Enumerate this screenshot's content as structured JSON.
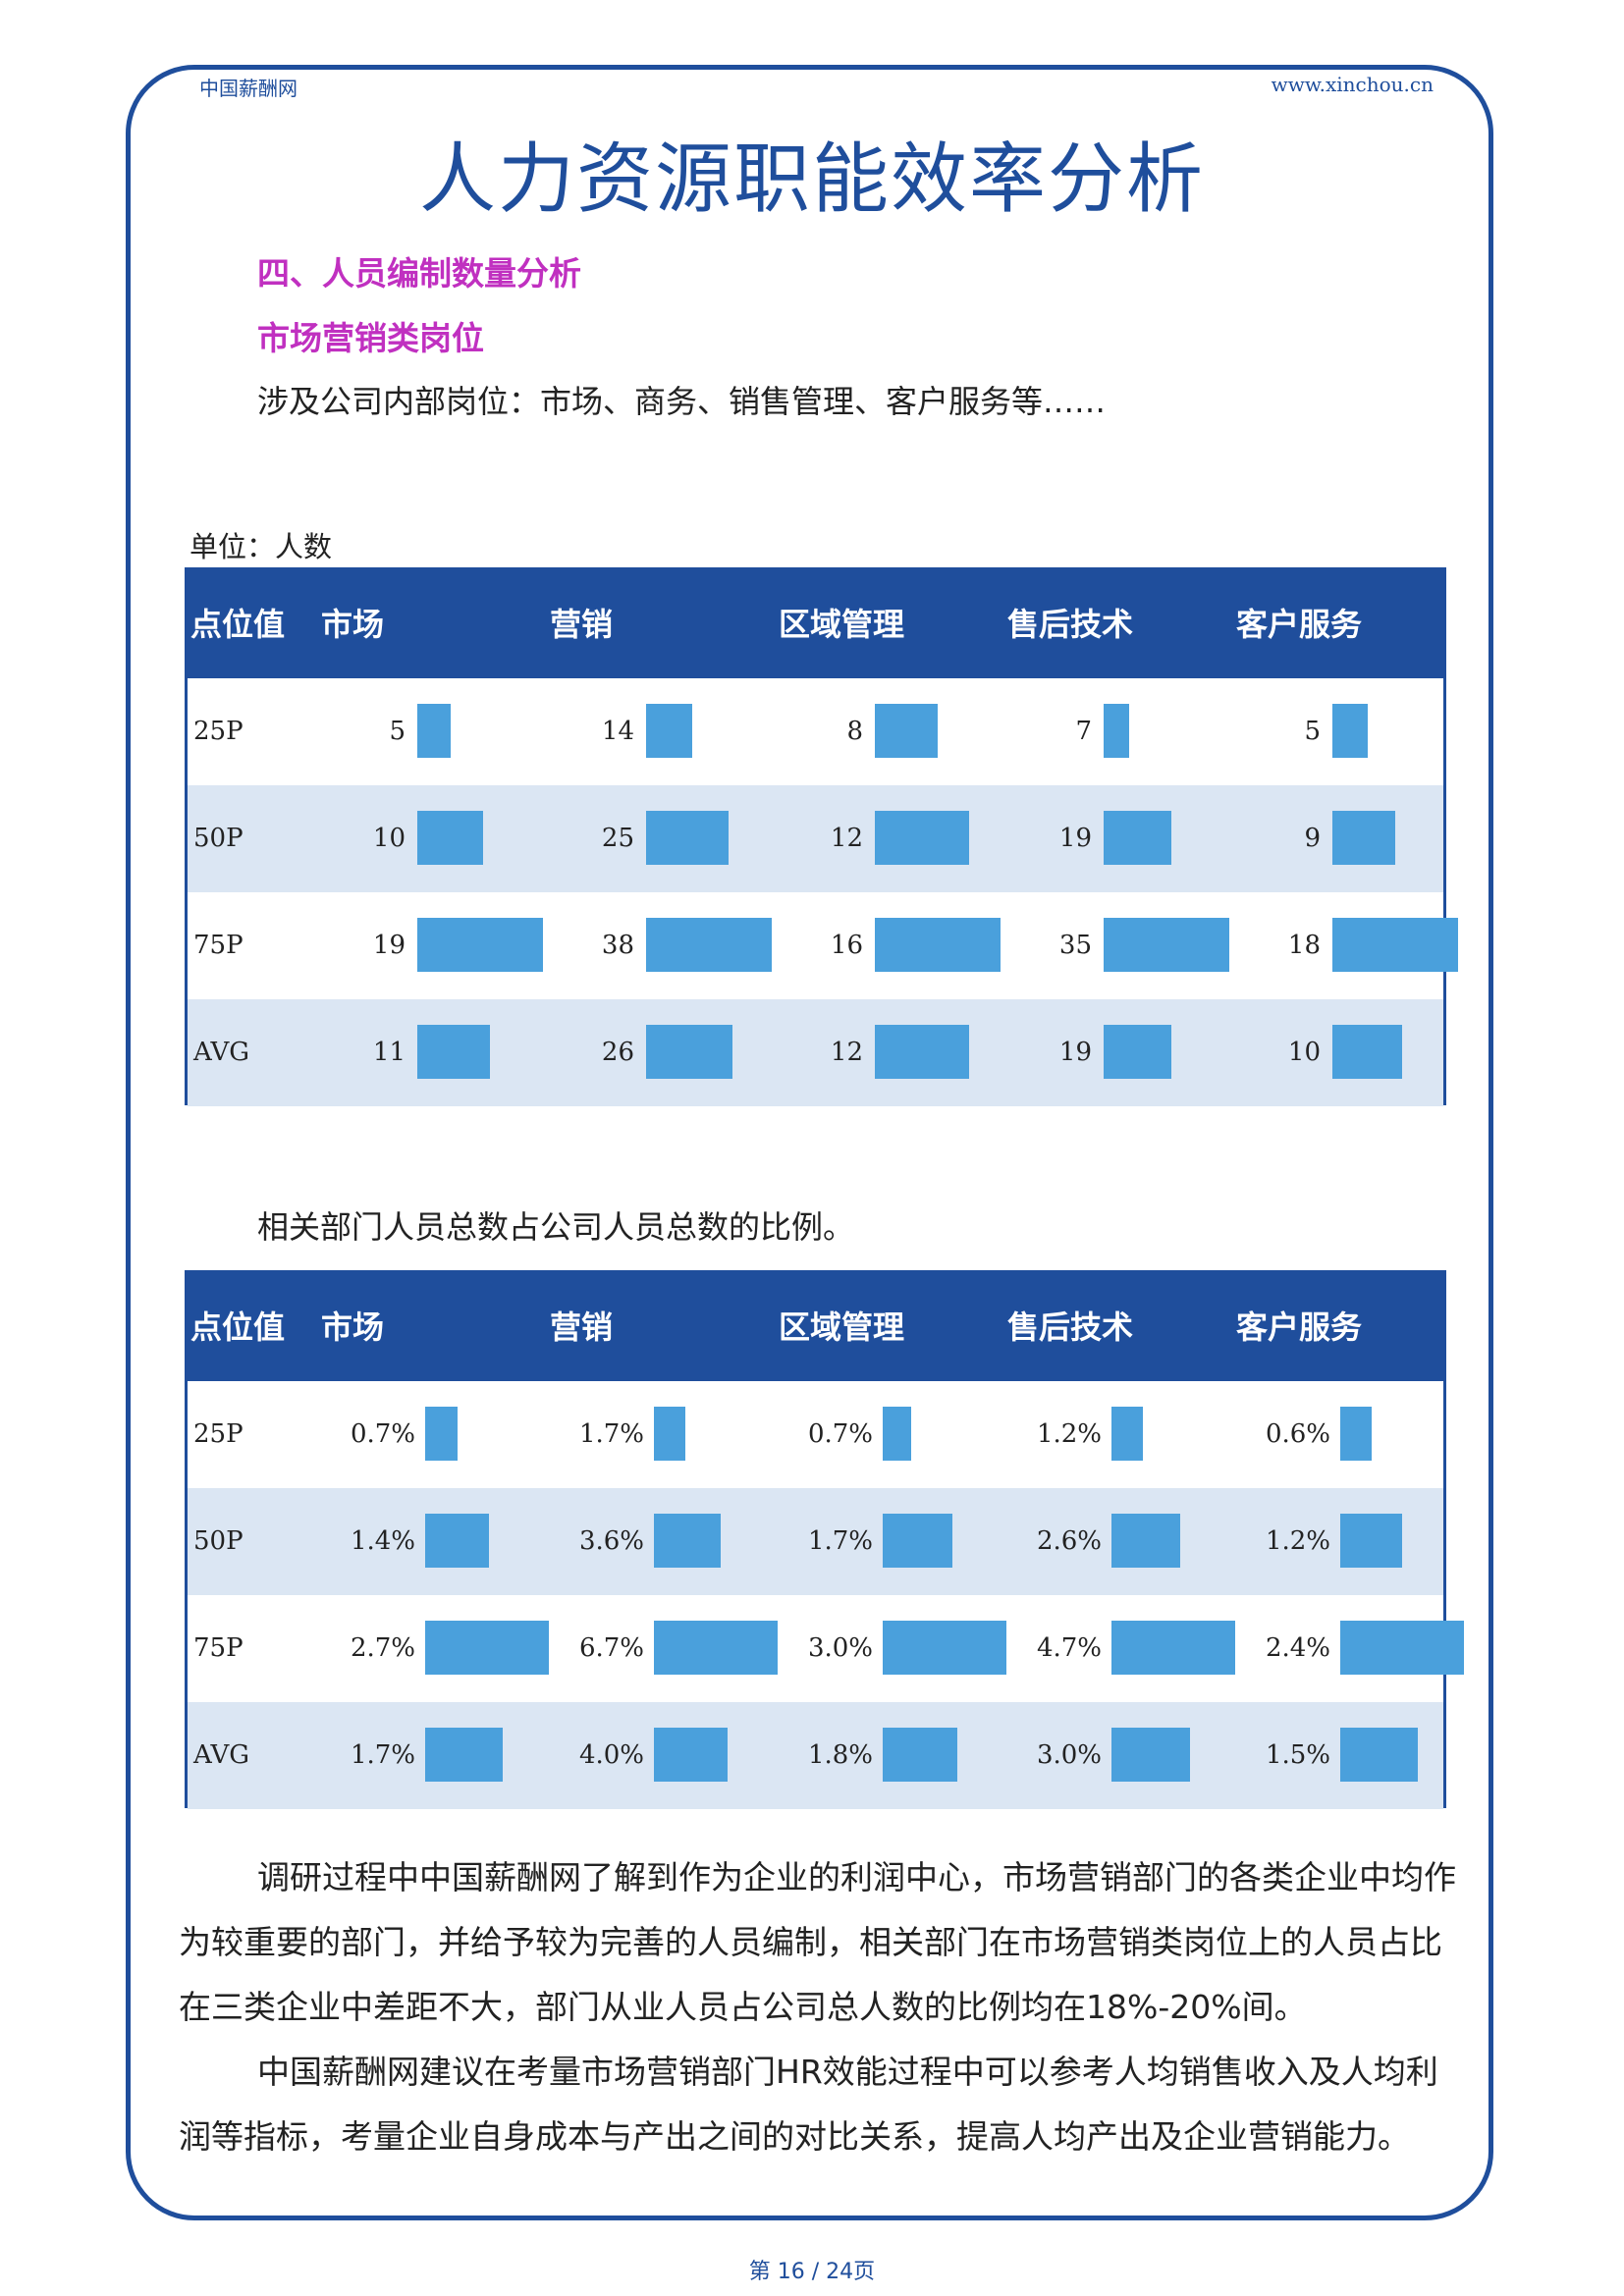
{
  "header": {
    "left": "中国薪酬网",
    "right": "www.xinchou.cn"
  },
  "title": "人力资源职能效率分析",
  "section_title": "四、人员编制数量分析",
  "subsection_title": "市场营销类岗位",
  "intro": "涉及公司内部岗位：市场、商务、销售管理、客户服务等……",
  "unit": "单位：人数",
  "headers": [
    "点位值",
    "市场",
    "营销",
    "区域管理",
    "售后技术",
    "客户服务"
  ],
  "headcount_table": {
    "rows": [
      {
        "label": "25P",
        "values": [
          5,
          14,
          8,
          7,
          5
        ]
      },
      {
        "label": "50P",
        "values": [
          10,
          25,
          12,
          19,
          9
        ]
      },
      {
        "label": "75P",
        "values": [
          19,
          38,
          16,
          35,
          18
        ]
      },
      {
        "label": "AVG",
        "values": [
          11,
          26,
          12,
          19,
          10
        ]
      }
    ]
  },
  "ratio_caption": "相关部门人员总数占公司人员总数的比例。",
  "ratio_table": {
    "rows": [
      {
        "label": "25P",
        "values": [
          0.7,
          1.7,
          0.7,
          1.2,
          0.6
        ],
        "display": [
          "0.7%",
          "1.7%",
          "0.7%",
          "1.2%",
          "0.6%"
        ]
      },
      {
        "label": "50P",
        "values": [
          1.4,
          3.6,
          1.7,
          2.6,
          1.2
        ],
        "display": [
          "1.4%",
          "3.6%",
          "1.7%",
          "2.6%",
          "1.2%"
        ]
      },
      {
        "label": "75P",
        "values": [
          2.7,
          6.7,
          3.0,
          4.7,
          2.4
        ],
        "display": [
          "2.7%",
          "6.7%",
          "3.0%",
          "4.7%",
          "2.4%"
        ]
      },
      {
        "label": "AVG",
        "values": [
          1.7,
          4.0,
          1.8,
          3.0,
          1.5
        ],
        "display": [
          "1.7%",
          "4.0%",
          "1.8%",
          "3.0%",
          "1.5%"
        ]
      }
    ]
  },
  "paragraphs": [
    "调研过程中中国薪酬网了解到作为企业的利润中心，市场营销部门的各类企业中均作为较重要的部门，并给予较为完善的人员编制，相关部门在市场营销类岗位上的人员占比在三类企业中差距不大，部门从业人员占公司总人数的比例均在18%-20%间。",
    "中国薪酬网建议在考量市场营销部门HR效能过程中可以参考人均销售收入及人均利润等指标，考量企业自身成本与产出之间的对比关系，提高人均产出及企业营销能力。"
  ],
  "footer": "第 16 / 24页",
  "colors": {
    "brand": "#1f4e9c",
    "bar": "#4aa0dc",
    "section": "#c030c0",
    "row_alt": "#dbe6f3"
  }
}
